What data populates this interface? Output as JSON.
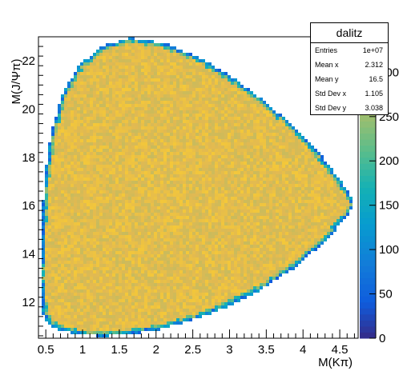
{
  "chart_data": {
    "type": "heatmap",
    "title": "dalitz",
    "xlabel": "M(Kπ)",
    "ylabel": "M(J/Ψπ)",
    "xlim": [
      0.4,
      4.75
    ],
    "ylim": [
      10.5,
      23.0
    ],
    "zlim": [
      0,
      340
    ],
    "x_ticks": [
      0.5,
      1,
      1.5,
      2,
      2.5,
      3,
      3.5,
      4,
      4.5
    ],
    "x_tick_labels": [
      "0.5",
      "1",
      "1.5",
      "2",
      "2.5",
      "3",
      "3.5",
      "4",
      "4.5"
    ],
    "y_ticks": [
      12,
      14,
      16,
      18,
      20,
      22
    ],
    "y_tick_labels": [
      "12",
      "14",
      "16",
      "18",
      "20",
      "22"
    ],
    "z_ticks": [
      0,
      50,
      100,
      150,
      200,
      250,
      300
    ],
    "z_tick_labels": [
      "0",
      "50",
      "100",
      "150",
      "200",
      "250",
      "300"
    ],
    "colormap": "parula",
    "interior_content": 300,
    "boundary": [
      [
        0.54,
        11.05
      ],
      [
        0.45,
        11.6
      ],
      [
        0.43,
        13.0
      ],
      [
        0.44,
        15.0
      ],
      [
        0.48,
        17.0
      ],
      [
        0.57,
        19.0
      ],
      [
        0.72,
        20.6
      ],
      [
        0.95,
        21.8
      ],
      [
        1.25,
        22.6
      ],
      [
        1.65,
        22.95
      ],
      [
        2.1,
        22.75
      ],
      [
        2.55,
        22.2
      ],
      [
        3.0,
        21.4
      ],
      [
        3.45,
        20.4
      ],
      [
        3.9,
        19.2
      ],
      [
        4.3,
        17.9
      ],
      [
        4.62,
        16.55
      ],
      [
        4.7,
        16.1
      ],
      [
        4.62,
        15.6
      ],
      [
        4.3,
        14.5
      ],
      [
        3.9,
        13.45
      ],
      [
        3.45,
        12.55
      ],
      [
        3.0,
        11.85
      ],
      [
        2.55,
        11.3
      ],
      [
        2.1,
        10.9
      ],
      [
        1.65,
        10.65
      ],
      [
        1.25,
        10.58
      ],
      [
        0.95,
        10.65
      ],
      [
        0.72,
        10.8
      ]
    ],
    "stats": {
      "title": "dalitz",
      "rows": [
        {
          "label": "Entries",
          "value": "1e+07"
        },
        {
          "label": "Mean x",
          "value": "2.312"
        },
        {
          "label": "Mean y",
          "value": "16.5"
        },
        {
          "label": "Std Dev x",
          "value": "1.105"
        },
        {
          "label": "Std Dev y",
          "value": "3.038"
        }
      ]
    }
  }
}
